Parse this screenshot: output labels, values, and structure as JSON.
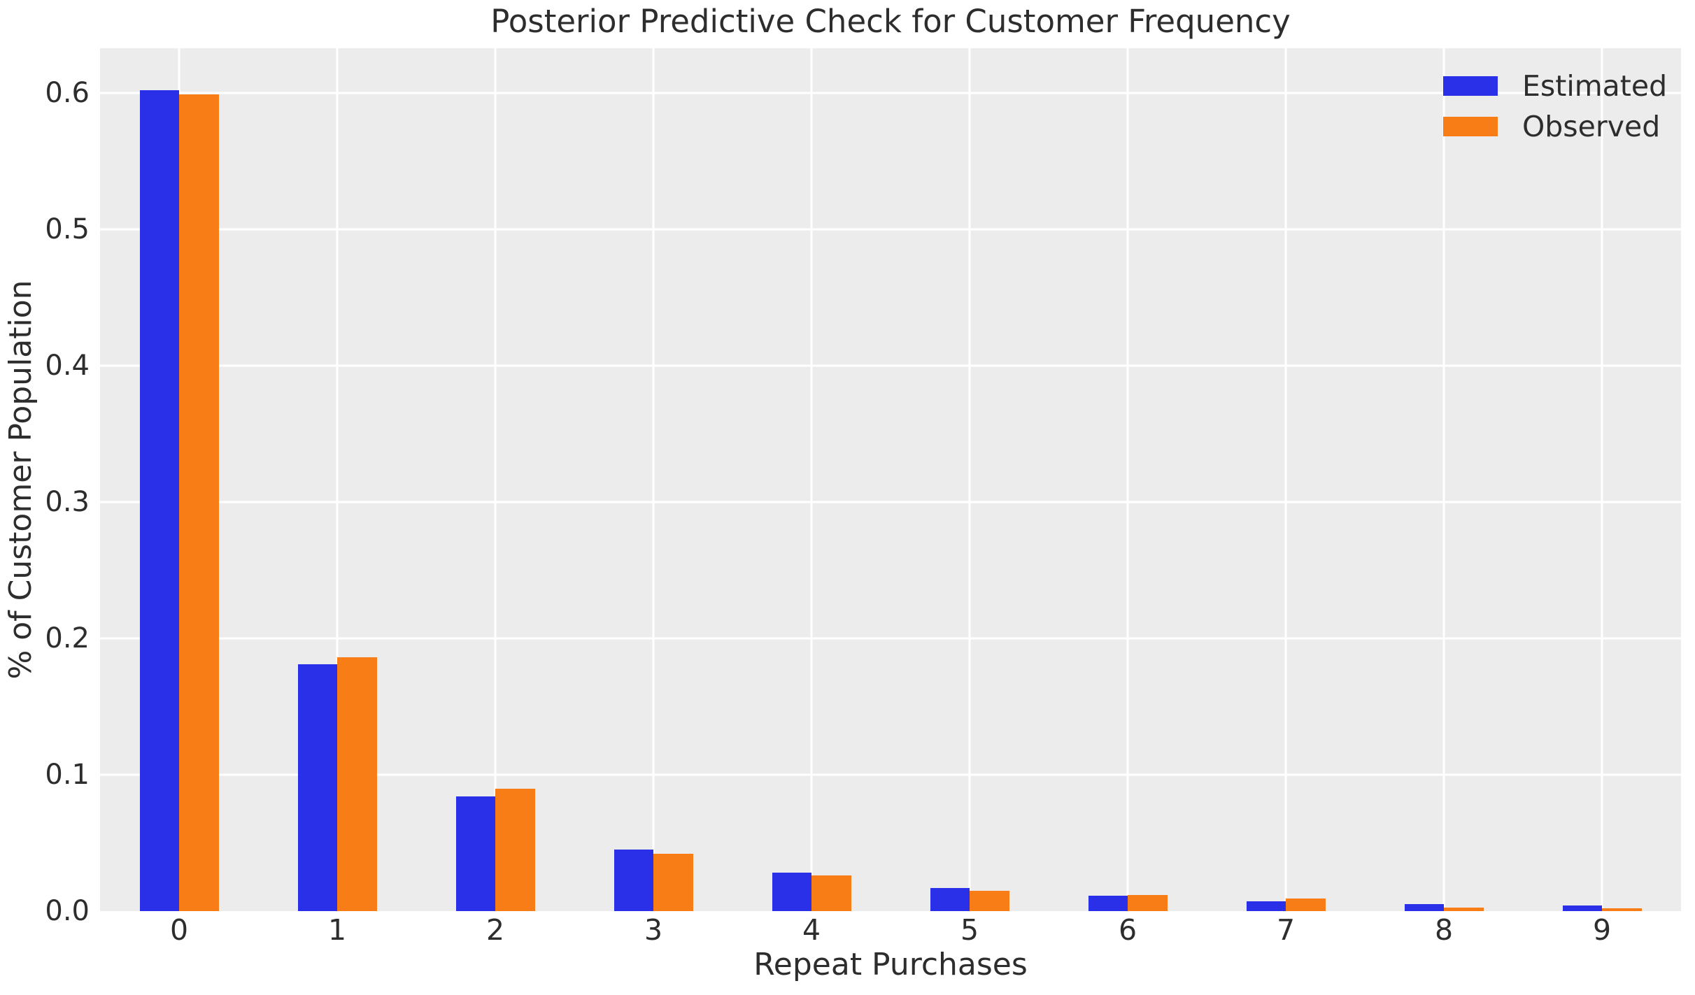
{
  "figure": {
    "title": "Posterior Predictive Check for Customer Frequency",
    "xlabel": "Repeat Purchases",
    "ylabel": "% of Customer Population"
  },
  "chart_data": {
    "type": "bar",
    "title": "Posterior Predictive Check for Customer Frequency",
    "xlabel": "Repeat Purchases",
    "ylabel": "% of Customer Population",
    "categories": [
      "0",
      "1",
      "2",
      "3",
      "4",
      "5",
      "6",
      "7",
      "8",
      "9"
    ],
    "series": [
      {
        "name": "Estimated",
        "color": "#2a2fe8",
        "values": [
          0.602,
          0.181,
          0.084,
          0.045,
          0.028,
          0.017,
          0.0115,
          0.007,
          0.005,
          0.004
        ]
      },
      {
        "name": "Observed",
        "color": "#f87d17",
        "values": [
          0.599,
          0.186,
          0.09,
          0.042,
          0.026,
          0.015,
          0.012,
          0.009,
          0.0025,
          0.002
        ]
      }
    ],
    "yticks": [
      "0.0",
      "0.1",
      "0.2",
      "0.3",
      "0.4",
      "0.5",
      "0.6"
    ],
    "ytick_values": [
      0.0,
      0.1,
      0.2,
      0.3,
      0.4,
      0.5,
      0.6
    ],
    "ylim": [
      0,
      0.633
    ],
    "grid": true,
    "grid_color": "#ffffff",
    "background_color": "#ececec",
    "text_color": "#2d2d2d",
    "legend_position": "upper right",
    "bar_width_fraction": 0.25
  }
}
